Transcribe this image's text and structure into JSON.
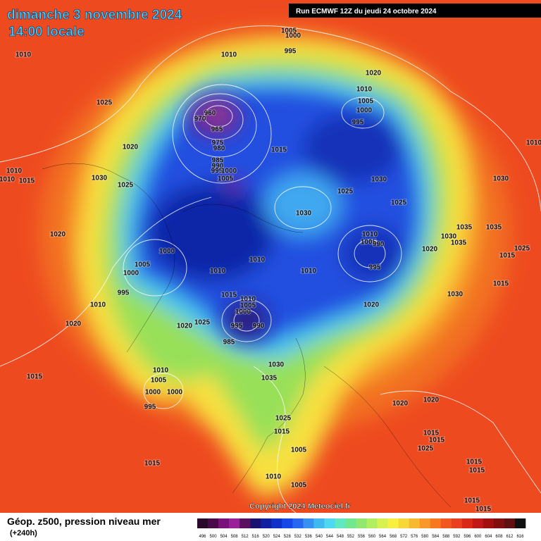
{
  "header": {
    "date": "dimanche 3 novembre 2024",
    "time": "14:00 locale",
    "run": "Run ECMWF 12Z du jeudi 24 octobre 2024"
  },
  "copyright": "Copyright 2024 Meteociel.fr",
  "footer": {
    "title": "Géop. z500, pression niveau mer",
    "lead": "(+240h)"
  },
  "isobar_labels": [
    1010,
    1025,
    1020,
    1010,
    1010,
    1015,
    1030,
    1025,
    1020,
    1000,
    1005,
    1000,
    995,
    1010,
    1020,
    1015,
    1010,
    1005,
    1000,
    1000,
    995,
    1015,
    1005,
    1000,
    995,
    1010,
    1020,
    1010,
    1005,
    1000,
    995,
    960,
    970,
    965,
    975,
    980,
    985,
    990,
    995,
    1000,
    1005,
    1015,
    1025,
    1030,
    1025,
    1030,
    1010,
    1005,
    990,
    995,
    1030,
    1035,
    1035,
    1030,
    1035,
    1020,
    1025,
    1015,
    1015,
    1030,
    1020,
    1010,
    1010,
    1010,
    1015,
    1010,
    1005,
    1000,
    995,
    990,
    985,
    1020,
    1025,
    1030,
    1035,
    1020,
    1020,
    1025,
    1015,
    1005,
    1015,
    1015,
    1025,
    1010,
    1005,
    1015,
    1015,
    1015,
    1015,
    1010
  ],
  "colorbar": {
    "labels": [
      496,
      500,
      504,
      508,
      512,
      516,
      520,
      524,
      528,
      532,
      536,
      540,
      544,
      548,
      552,
      556,
      560,
      564,
      568,
      572,
      576,
      580,
      584,
      588,
      592,
      596,
      600,
      604,
      608,
      612,
      616
    ],
    "colors": [
      "#2a0a2a",
      "#4a0a4a",
      "#7a107a",
      "#9a209a",
      "#5a1060",
      "#1a1070",
      "#1020a0",
      "#1030c8",
      "#1848e8",
      "#2868f0",
      "#3890f0",
      "#40b8f0",
      "#50d8f0",
      "#60e8c0",
      "#70e890",
      "#90e870",
      "#b0f060",
      "#d8f050",
      "#f8f040",
      "#f8d838",
      "#f8b830",
      "#f89828",
      "#f87820",
      "#f05820",
      "#e84020",
      "#d82818",
      "#c01818",
      "#a01010",
      "#801010",
      "#601010",
      "#101010"
    ]
  }
}
